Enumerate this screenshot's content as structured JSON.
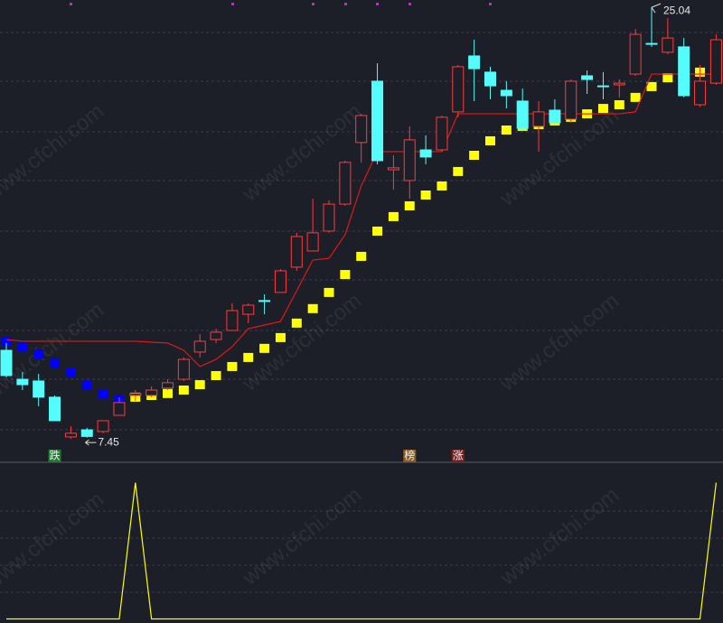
{
  "chart_data": {
    "type": "candlestick",
    "colors": {
      "up": "#ff3b3b",
      "down": "#54fcfc"
    },
    "ylim": [
      6.57,
      25.34
    ],
    "open": [
      11.06,
      9.88,
      9.81,
      9.15,
      7.53,
      7.82,
      7.75,
      8.41,
      9.22,
      9.22,
      9.52,
      9.88,
      10.99,
      11.5,
      11.87,
      12.53,
      13.09,
      13.42,
      14.45,
      15.11,
      15.92,
      17.02,
      19.53,
      22.03,
      18.42,
      17.98,
      19.23,
      19.23,
      20.78,
      23.06,
      22.4,
      21.66,
      21.22,
      20.19,
      20.85,
      20.48,
      22.25,
      21.84,
      21.88,
      22.32,
      23.57,
      23.21,
      23.43,
      21.07,
      21.95
    ],
    "high": [
      11.36,
      10.18,
      10.1,
      9.22,
      7.97,
      7.9,
      8.19,
      9.15,
      9.44,
      9.59,
      9.88,
      10.77,
      11.72,
      11.94,
      12.98,
      12.98,
      13.34,
      14.37,
      15.85,
      17.24,
      17.17,
      18.79,
      20.7,
      22.76,
      19.01,
      20.19,
      19.82,
      20.63,
      22.69,
      23.72,
      22.62,
      22.03,
      21.73,
      21.22,
      21.29,
      22.1,
      22.47,
      22.4,
      22.1,
      24.16,
      25.04,
      24.6,
      23.79,
      22.69,
      23.94
    ],
    "low": [
      9.96,
      9.44,
      8.78,
      8.19,
      7.45,
      7.5,
      7.68,
      8.41,
      9.0,
      9.15,
      9.44,
      9.81,
      10.77,
      11.36,
      11.87,
      12.17,
      12.53,
      13.42,
      14.3,
      15.11,
      15.85,
      16.95,
      18.72,
      18.64,
      17.61,
      17.24,
      18.64,
      19.16,
      20.56,
      21.22,
      21.29,
      20.92,
      20.0,
      19.16,
      20.26,
      20.34,
      21.51,
      21.29,
      21.37,
      22.25,
      23.43,
      23.13,
      21.37,
      20.98,
      21.88
    ],
    "close": [
      10.03,
      9.66,
      9.15,
      8.19,
      7.68,
      7.55,
      8.19,
      8.93,
      9.3,
      9.44,
      9.74,
      10.69,
      11.43,
      11.8,
      12.68,
      12.9,
      13.05,
      14.3,
      15.7,
      15.85,
      17.02,
      18.72,
      20.63,
      18.79,
      18.5,
      19.64,
      18.94,
      20.56,
      22.62,
      22.54,
      21.84,
      21.44,
      20.11,
      20.78,
      20.34,
      22.03,
      22.1,
      21.81,
      21.95,
      23.94,
      23.54,
      23.79,
      21.44,
      22.03,
      23.72
    ],
    "high_labels": [
      null,
      null,
      null,
      null,
      null,
      null,
      null,
      null,
      null,
      null,
      null,
      null,
      null,
      null,
      null,
      null,
      null,
      null,
      null,
      null,
      null,
      null,
      null,
      null,
      null,
      null,
      null,
      null,
      null,
      null,
      null,
      null,
      null,
      null,
      null,
      null,
      null,
      null,
      null,
      null,
      "25.04",
      null,
      null,
      null,
      null
    ],
    "low_labels": [
      null,
      null,
      null,
      null,
      "7.45",
      null,
      null,
      null,
      null,
      null,
      null,
      null,
      null,
      null,
      null,
      null,
      null,
      null,
      null,
      null,
      null,
      null,
      null,
      null,
      null,
      null,
      null,
      null,
      null,
      null,
      null,
      null,
      null,
      null,
      null,
      null,
      null,
      null,
      null,
      null,
      null,
      null,
      null,
      null,
      null
    ],
    "blocks": [
      {
        "color": "#0000ff",
        "values": [
          11.43,
          11.21,
          10.91,
          10.55,
          10.14,
          9.63,
          9.26,
          9.07,
          null,
          null,
          null,
          null,
          null,
          null,
          null,
          null,
          null,
          null,
          null,
          null,
          null,
          null,
          null,
          null,
          null,
          null,
          null,
          null,
          null,
          null,
          null,
          null,
          null,
          null,
          null,
          null,
          null,
          null,
          null,
          null,
          null,
          null,
          null,
          null,
          null
        ]
      },
      {
        "color": "#ffff00",
        "values": [
          null,
          null,
          null,
          null,
          null,
          null,
          null,
          null,
          9.15,
          9.22,
          9.3,
          9.44,
          9.66,
          10.03,
          10.4,
          10.77,
          11.14,
          11.58,
          12.17,
          12.76,
          13.42,
          14.15,
          14.89,
          15.92,
          16.51,
          16.95,
          17.39,
          17.76,
          18.35,
          19.01,
          19.6,
          20.04,
          20.19,
          20.26,
          20.41,
          20.56,
          20.7,
          20.92,
          21.07,
          21.37,
          21.81,
          22.17,
          22.32,
          22.4,
          22.4
        ]
      }
    ],
    "line": {
      "color": "#e01818",
      "values": [
        11.5,
        11.43,
        11.43,
        11.43,
        11.43,
        11.43,
        11.43,
        11.43,
        11.43,
        11.39,
        11.36,
        11.06,
        10.4,
        10.69,
        11.21,
        11.94,
        12.09,
        12.24,
        13.49,
        14.74,
        14.81,
        15.77,
        17.76,
        19.16,
        19.16,
        19.16,
        19.16,
        19.16,
        20.7,
        20.7,
        20.7,
        20.7,
        20.7,
        20.7,
        20.7,
        20.7,
        20.7,
        20.7,
        20.7,
        20.78,
        22.32,
        22.32,
        22.32,
        22.32,
        22.32
      ]
    },
    "signals": [
      {
        "index": 3,
        "text": "跌",
        "color": "#1e7a2c"
      },
      {
        "index": 25,
        "text": "榜",
        "color": "#8a5a1e"
      },
      {
        "index": 28,
        "text": "涨",
        "color": "#7a1e1e"
      }
    ],
    "lower": {
      "type": "line",
      "color": "#ffff00",
      "ylim": [
        -0.03,
        1.15
      ],
      "values": [
        0,
        0,
        0,
        0,
        0,
        0,
        0,
        0,
        1,
        0,
        0,
        0,
        0,
        0,
        0,
        0,
        0,
        0,
        0,
        0,
        0,
        0,
        0,
        0,
        0,
        0,
        0,
        0,
        0,
        0,
        0,
        0,
        0,
        0,
        0,
        0,
        0,
        0,
        0,
        0,
        0,
        0,
        0,
        0,
        1
      ]
    },
    "watermark": "www.cfchi.com"
  }
}
